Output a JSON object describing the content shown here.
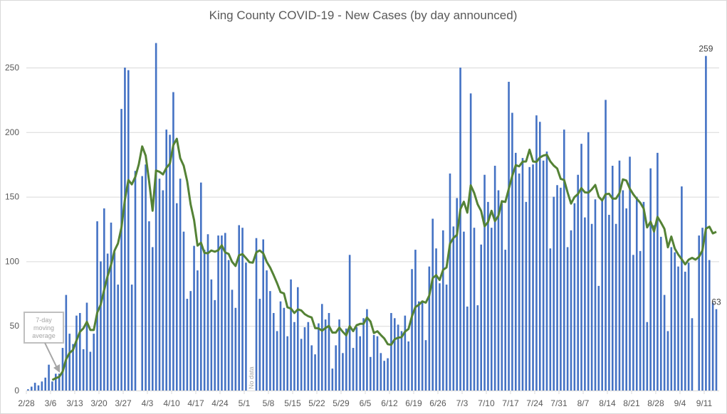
{
  "chart_data": {
    "type": "bar",
    "title": "King County COVID-19 - New Cases (by day announced)",
    "xlabel": "",
    "ylabel": "",
    "ylim": [
      0,
      270
    ],
    "yticks": [
      0,
      50,
      100,
      150,
      200,
      250
    ],
    "grid": true,
    "start_date": "2/28",
    "xtick_labels": [
      "2/28",
      "3/6",
      "3/13",
      "3/20",
      "3/27",
      "4/3",
      "4/10",
      "4/17",
      "4/24",
      "5/1",
      "5/8",
      "5/15",
      "5/22",
      "5/29",
      "6/5",
      "6/12",
      "6/19",
      "6/26",
      "7/3",
      "7/10",
      "7/17",
      "7/24",
      "7/31",
      "8/7",
      "8/14",
      "8/21",
      "8/28",
      "9/4",
      "9/11"
    ],
    "series": [
      {
        "name": "New cases",
        "type": "bar",
        "color": "#4472C4",
        "values": [
          1,
          3,
          6,
          4,
          7,
          10,
          20,
          7,
          13,
          13,
          33,
          74,
          44,
          36,
          58,
          60,
          32,
          68,
          30,
          44,
          131,
          100,
          141,
          106,
          130,
          107,
          82,
          218,
          250,
          248,
          82,
          170,
          null,
          166,
          175,
          131,
          111,
          269,
          164,
          155,
          202,
          198,
          231,
          145,
          164,
          123,
          71,
          77,
          112,
          93,
          161,
          109,
          121,
          86,
          70,
          120,
          120,
          122,
          101,
          78,
          64,
          128,
          126,
          99,
          null,
          null,
          118,
          71,
          117,
          93,
          77,
          60,
          46,
          69,
          64,
          42,
          86,
          53,
          80,
          40,
          49,
          53,
          35,
          28,
          52,
          67,
          55,
          60,
          17,
          35,
          55,
          29,
          48,
          105,
          33,
          49,
          42,
          56,
          63,
          26,
          43,
          42,
          29,
          23,
          25,
          60,
          56,
          51,
          46,
          58,
          38,
          94,
          109,
          69,
          69,
          39,
          96,
          133,
          110,
          83,
          124,
          82,
          168,
          127,
          149,
          250,
          123,
          65,
          230,
          126,
          66,
          113,
          167,
          146,
          126,
          174,
          155,
          145,
          109,
          239,
          215,
          184,
          168,
          180,
          146,
          173,
          175,
          213,
          208,
          178,
          185,
          110,
          150,
          159,
          157,
          202,
          111,
          124,
          145,
          167,
          191,
          134,
          200,
          129,
          148,
          81,
          147,
          225,
          136,
          174,
          129,
          178,
          155,
          141,
          181,
          105,
          150,
          108,
          146,
          53,
          172,
          128,
          184,
          119,
          74,
          46,
          111,
          107,
          96,
          158,
          92,
          99,
          56,
          null,
          120,
          126,
          259,
          101,
          68,
          63
        ]
      },
      {
        "name": "7-day moving average",
        "type": "line",
        "color": "#548235",
        "window": 7
      }
    ],
    "data_labels": [
      {
        "index": 196,
        "text": "259"
      },
      {
        "index": 199,
        "text": "63"
      }
    ],
    "annotations": {
      "moving_average": "7-day moving average",
      "moving_average_lines": [
        "7-day",
        "moving",
        "average"
      ],
      "no_data": "No data"
    }
  }
}
